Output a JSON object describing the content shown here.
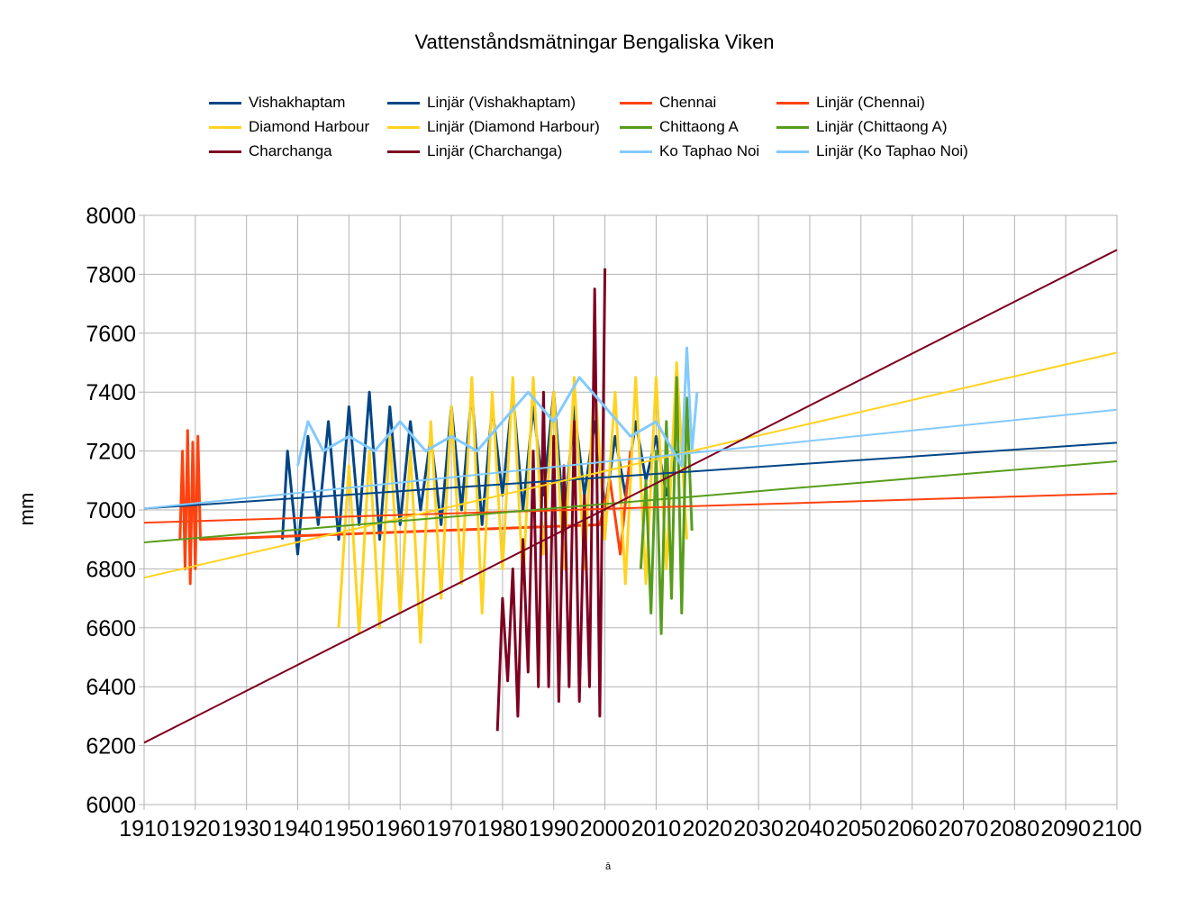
{
  "chart_data": {
    "type": "line",
    "title": "Vattenståndsmätningar Bengaliska Viken",
    "xlabel": "ā",
    "ylabel": "mm",
    "xlim": [
      1910,
      2100
    ],
    "ylim": [
      6000,
      8000
    ],
    "x_ticks": [
      "1910",
      "1920",
      "1930",
      "1940",
      "1950",
      "1960",
      "1970",
      "1980",
      "1990",
      "2000",
      "2010",
      "2020",
      "2030",
      "2040",
      "2050",
      "2060",
      "2070",
      "2080",
      "2090",
      "2100"
    ],
    "y_ticks": [
      "8000",
      "7800",
      "7600",
      "7400",
      "7200",
      "7000",
      "6800",
      "6600",
      "6400",
      "6200",
      "6000"
    ],
    "grid": true,
    "legend_position": "top",
    "series": [
      {
        "name": "Vishakhaptam",
        "color": "#004586",
        "x": [
          1937,
          1938,
          1940,
          1942,
          1944,
          1946,
          1948,
          1950,
          1952,
          1954,
          1956,
          1958,
          1960,
          1962,
          1964,
          1966,
          1968,
          1970,
          1972,
          1974,
          1976,
          1978,
          1980,
          1982,
          1984,
          1986,
          1988,
          1990,
          1992,
          1994,
          1996,
          1998,
          2000,
          2002,
          2004,
          2006,
          2008,
          2010,
          2012,
          2014
        ],
        "y": [
          6900,
          7200,
          6850,
          7250,
          6950,
          7300,
          6900,
          7350,
          6950,
          7400,
          6900,
          7350,
          6950,
          7300,
          7000,
          7250,
          6950,
          7350,
          7000,
          7400,
          6950,
          7350,
          7050,
          7400,
          7000,
          7350,
          7050,
          7400,
          6950,
          7350,
          7050,
          7300,
          7000,
          7250,
          7050,
          7300,
          7100,
          7250,
          7050,
          7200
        ]
      },
      {
        "name": "Linjär (Vishakhaptam)",
        "color": "#004586",
        "x": [
          1910,
          2100
        ],
        "y": [
          7005,
          7228
        ]
      },
      {
        "name": "Chennai",
        "color": "#ff420e",
        "x": [
          1917,
          1917.5,
          1918,
          1918.5,
          1919,
          1919.5,
          1920,
          1920.5,
          1921,
          1999,
          2001,
          2003,
          2005
        ],
        "y": [
          6900,
          7200,
          6800,
          7270,
          6750,
          7230,
          6800,
          7250,
          6900,
          6950,
          7100,
          6850,
          7200
        ]
      },
      {
        "name": "Linjär (Chennai)",
        "color": "#ff420e",
        "x": [
          1910,
          2100
        ],
        "y": [
          6957,
          7056
        ]
      },
      {
        "name": "Diamond Harbour",
        "color": "#ffd320",
        "x": [
          1948,
          1950,
          1952,
          1954,
          1956,
          1958,
          1960,
          1962,
          1964,
          1966,
          1968,
          1970,
          1972,
          1974,
          1976,
          1978,
          1980,
          1982,
          1984,
          1986,
          1988,
          1990,
          1992,
          1994,
          1996,
          1998,
          2000,
          2002,
          2004,
          2006,
          2008,
          2010,
          2012,
          2014,
          2016
        ],
        "y": [
          6600,
          7150,
          6580,
          7200,
          6600,
          7250,
          6650,
          7200,
          6550,
          7300,
          6700,
          7350,
          6750,
          7450,
          6650,
          7400,
          6800,
          7450,
          6750,
          7450,
          6850,
          7400,
          6800,
          7450,
          6800,
          7450,
          6900,
          7400,
          6750,
          7450,
          6750,
          7450,
          6800,
          7500,
          6900
        ]
      },
      {
        "name": "Linjär (Diamond Harbour)",
        "color": "#ffd320",
        "x": [
          1910,
          2100
        ],
        "y": [
          6770,
          7534
        ]
      },
      {
        "name": "Chittaong A",
        "color": "#579d1c",
        "x": [
          2007,
          2008,
          2009,
          2010,
          2011,
          2012,
          2013,
          2014,
          2015,
          2016,
          2017
        ],
        "y": [
          6800,
          7100,
          6650,
          7200,
          6580,
          7300,
          6700,
          7450,
          6650,
          7380,
          6930
        ]
      },
      {
        "name": "Linjär (Chittaong A)",
        "color": "#579d1c",
        "x": [
          1910,
          2100
        ],
        "y": [
          6890,
          7165
        ]
      },
      {
        "name": "Charchanga",
        "color": "#7e0021",
        "x": [
          1979,
          1980,
          1981,
          1982,
          1983,
          1984,
          1985,
          1986,
          1987,
          1988,
          1989,
          1990,
          1991,
          1992,
          1993,
          1994,
          1995,
          1996,
          1997,
          1998,
          1999,
          2000
        ],
        "y": [
          6250,
          6700,
          6420,
          6800,
          6300,
          6900,
          6450,
          7200,
          6400,
          7400,
          6400,
          7250,
          6350,
          7150,
          6400,
          7300,
          6350,
          7050,
          6400,
          7750,
          6300,
          7820
        ]
      },
      {
        "name": "Linjär (Charchanga)",
        "color": "#7e0021",
        "x": [
          1910,
          2100
        ],
        "y": [
          6210,
          7883
        ]
      },
      {
        "name": "Ko Taphao Noi",
        "color": "#83caff",
        "x": [
          1940,
          1942,
          1945,
          1950,
          1955,
          1960,
          1965,
          1970,
          1975,
          1980,
          1985,
          1990,
          1995,
          2000,
          2005,
          2010,
          2015,
          2016,
          2017,
          2018
        ],
        "y": [
          7150,
          7300,
          7200,
          7250,
          7200,
          7300,
          7200,
          7250,
          7200,
          7300,
          7400,
          7300,
          7450,
          7350,
          7250,
          7300,
          7150,
          7550,
          7200,
          7400
        ]
      },
      {
        "name": "Linjär (Ko Taphao Noi)",
        "color": "#83caff",
        "x": [
          1910,
          2100
        ],
        "y": [
          7005,
          7340
        ]
      }
    ]
  }
}
